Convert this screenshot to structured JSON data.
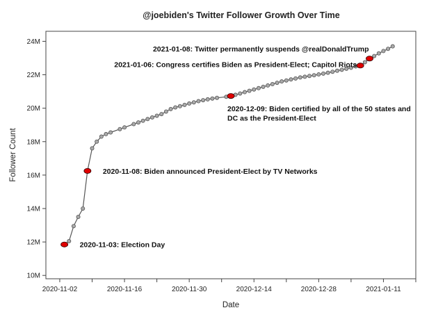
{
  "chart_data": {
    "type": "line",
    "title": "@joebiden's Twitter Follower Growth Over Time",
    "xlabel": "Date",
    "ylabel": "Follower Count",
    "x_ticks": [
      "2020-11-02",
      "2020-11-16",
      "2020-11-30",
      "2020-12-14",
      "2020-12-28",
      "2021-01-11"
    ],
    "y_ticks": [
      "10M",
      "12M",
      "14M",
      "16M",
      "18M",
      "20M",
      "22M",
      "24M"
    ],
    "xlim": [
      "2020-10-30",
      "2021-01-18"
    ],
    "ylim": [
      9.8,
      24.6
    ],
    "y_unit": "M",
    "grid": false,
    "series": [
      {
        "values": [
          {
            "x": "2020-11-03",
            "y": 11.85
          },
          {
            "x": "2020-11-04",
            "y": 12.05
          },
          {
            "x": "2020-11-05",
            "y": 12.95
          },
          {
            "x": "2020-11-06",
            "y": 13.5
          },
          {
            "x": "2020-11-07",
            "y": 14.0
          },
          {
            "x": "2020-11-08",
            "y": 16.25
          },
          {
            "x": "2020-11-09",
            "y": 17.6
          },
          {
            "x": "2020-11-10",
            "y": 18.0
          },
          {
            "x": "2020-11-11",
            "y": 18.3
          },
          {
            "x": "2020-11-12",
            "y": 18.45
          },
          {
            "x": "2020-11-13",
            "y": 18.55
          },
          {
            "x": "2020-11-15",
            "y": 18.75
          },
          {
            "x": "2020-11-16",
            "y": 18.85
          },
          {
            "x": "2020-11-18",
            "y": 19.05
          },
          {
            "x": "2020-11-19",
            "y": 19.15
          },
          {
            "x": "2020-11-20",
            "y": 19.25
          },
          {
            "x": "2020-11-21",
            "y": 19.35
          },
          {
            "x": "2020-11-22",
            "y": 19.45
          },
          {
            "x": "2020-11-23",
            "y": 19.55
          },
          {
            "x": "2020-11-24",
            "y": 19.65
          },
          {
            "x": "2020-11-25",
            "y": 19.8
          },
          {
            "x": "2020-11-26",
            "y": 19.95
          },
          {
            "x": "2020-11-27",
            "y": 20.05
          },
          {
            "x": "2020-11-28",
            "y": 20.12
          },
          {
            "x": "2020-11-29",
            "y": 20.2
          },
          {
            "x": "2020-11-30",
            "y": 20.28
          },
          {
            "x": "2020-12-01",
            "y": 20.35
          },
          {
            "x": "2020-12-02",
            "y": 20.42
          },
          {
            "x": "2020-12-03",
            "y": 20.48
          },
          {
            "x": "2020-12-04",
            "y": 20.53
          },
          {
            "x": "2020-12-05",
            "y": 20.58
          },
          {
            "x": "2020-12-06",
            "y": 20.62
          },
          {
            "x": "2020-12-08",
            "y": 20.68
          },
          {
            "x": "2020-12-09",
            "y": 20.73
          },
          {
            "x": "2020-12-10",
            "y": 20.8
          },
          {
            "x": "2020-12-11",
            "y": 20.88
          },
          {
            "x": "2020-12-12",
            "y": 20.96
          },
          {
            "x": "2020-12-13",
            "y": 21.04
          },
          {
            "x": "2020-12-14",
            "y": 21.12
          },
          {
            "x": "2020-12-15",
            "y": 21.2
          },
          {
            "x": "2020-12-16",
            "y": 21.28
          },
          {
            "x": "2020-12-17",
            "y": 21.36
          },
          {
            "x": "2020-12-18",
            "y": 21.44
          },
          {
            "x": "2020-12-19",
            "y": 21.52
          },
          {
            "x": "2020-12-20",
            "y": 21.6
          },
          {
            "x": "2020-12-21",
            "y": 21.66
          },
          {
            "x": "2020-12-22",
            "y": 21.72
          },
          {
            "x": "2020-12-23",
            "y": 21.78
          },
          {
            "x": "2020-12-24",
            "y": 21.84
          },
          {
            "x": "2020-12-25",
            "y": 21.88
          },
          {
            "x": "2020-12-26",
            "y": 21.93
          },
          {
            "x": "2020-12-27",
            "y": 21.97
          },
          {
            "x": "2020-12-28",
            "y": 22.02
          },
          {
            "x": "2020-12-29",
            "y": 22.07
          },
          {
            "x": "2020-12-30",
            "y": 22.12
          },
          {
            "x": "2020-12-31",
            "y": 22.18
          },
          {
            "x": "2021-01-01",
            "y": 22.24
          },
          {
            "x": "2021-01-02",
            "y": 22.3
          },
          {
            "x": "2021-01-03",
            "y": 22.36
          },
          {
            "x": "2021-01-04",
            "y": 22.42
          },
          {
            "x": "2021-01-05",
            "y": 22.5
          },
          {
            "x": "2021-01-06",
            "y": 22.55
          },
          {
            "x": "2021-01-07",
            "y": 22.75
          },
          {
            "x": "2021-01-08",
            "y": 22.97
          },
          {
            "x": "2021-01-09",
            "y": 23.12
          },
          {
            "x": "2021-01-10",
            "y": 23.28
          },
          {
            "x": "2021-01-11",
            "y": 23.42
          },
          {
            "x": "2021-01-12",
            "y": 23.55
          },
          {
            "x": "2021-01-13",
            "y": 23.7
          }
        ]
      }
    ],
    "annotations": [
      {
        "x": "2020-11-03",
        "y": 11.85,
        "text": "2020-11-03: Election Day",
        "anchor": "right"
      },
      {
        "x": "2020-11-08",
        "y": 16.25,
        "text": "2020-11-08: Biden announced President-Elect by TV Networks",
        "anchor": "right"
      },
      {
        "x": "2020-12-09",
        "y": 20.73,
        "lines": [
          "2020-12-09: Biden certified by all of the 50 states and",
          "DC as the President-Elect"
        ],
        "anchor": "below"
      },
      {
        "x": "2021-01-06",
        "y": 22.55,
        "text": "2021-01-06: Congress certifies Biden as President-Elect; Capitol Riots",
        "anchor": "left"
      },
      {
        "x": "2021-01-08",
        "y": 22.97,
        "text": "2021-01-08: Twitter permanently suspends @realDonaldTrump",
        "anchor": "above-left"
      }
    ],
    "colors": {
      "line": "#555555",
      "point_fill": "#aaaaaa",
      "point_stroke": "#555555",
      "highlight_fill": "#e00000",
      "highlight_stroke": "#330000",
      "axis": "#444444"
    }
  }
}
